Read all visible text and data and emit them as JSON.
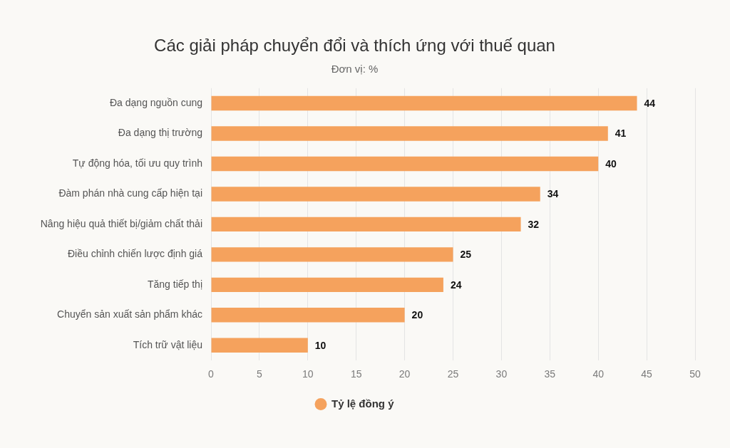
{
  "chart_data": {
    "type": "bar",
    "orientation": "horizontal",
    "title": "Các giải pháp chuyển đổi và thích ứng với thuế quan",
    "subtitle": "Đơn vị: %",
    "categories": [
      "Đa dạng nguồn cung",
      "Đa dạng thị trường",
      "Tự động hóa, tối ưu quy trình",
      "Đàm phán nhà cung cấp hiện tại",
      "Nâng hiệu quả thiết bị/giảm chất thải",
      "Điều chỉnh chiến lược định giá",
      "Tăng tiếp thị",
      "Chuyển sản xuất sản phẩm khác",
      "Tích trữ vật liệu"
    ],
    "series": [
      {
        "name": "Tỷ lệ đồng ý",
        "color": "#f5a25d",
        "values": [
          44,
          41,
          40,
          34,
          32,
          25,
          24,
          20,
          10
        ]
      }
    ],
    "xlim": [
      0,
      50
    ],
    "xticks": [
      0,
      5,
      10,
      15,
      20,
      25,
      30,
      35,
      40,
      45,
      50
    ],
    "grid": "x",
    "legend": "bottom",
    "data_labels": true
  }
}
